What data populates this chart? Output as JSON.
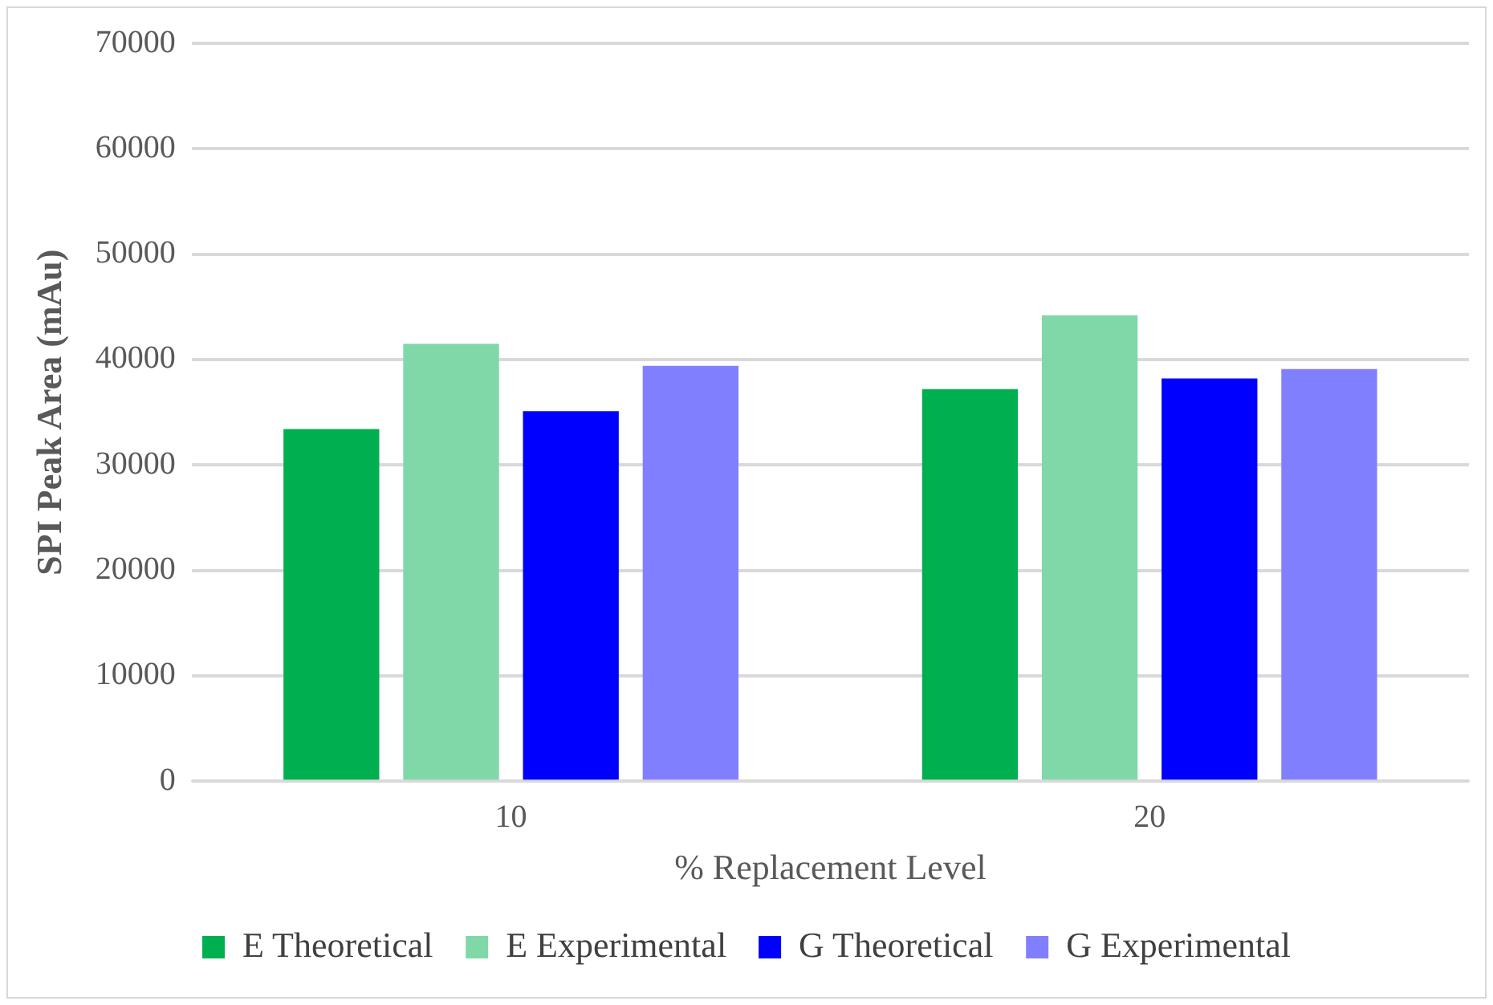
{
  "chart_data": {
    "type": "bar",
    "xlabel": "% Replacement Level",
    "ylabel": "SPI Peak Area (mAu)",
    "categories": [
      "10",
      "20"
    ],
    "series": [
      {
        "name": "E Theoretical",
        "color": "#00b050",
        "values": [
          33400,
          37200
        ]
      },
      {
        "name": "E Experimental",
        "color": "#80d8a8",
        "values": [
          41500,
          44200
        ]
      },
      {
        "name": "G Theoretical",
        "color": "#0000ff",
        "values": [
          35100,
          38200
        ]
      },
      {
        "name": "G Experimental",
        "color": "#8080ff",
        "values": [
          39400,
          39100
        ]
      }
    ],
    "ylim": [
      0,
      70000
    ],
    "yticks": [
      0,
      10000,
      20000,
      30000,
      40000,
      50000,
      60000,
      70000
    ],
    "grid": "y",
    "legend": "bottom"
  }
}
